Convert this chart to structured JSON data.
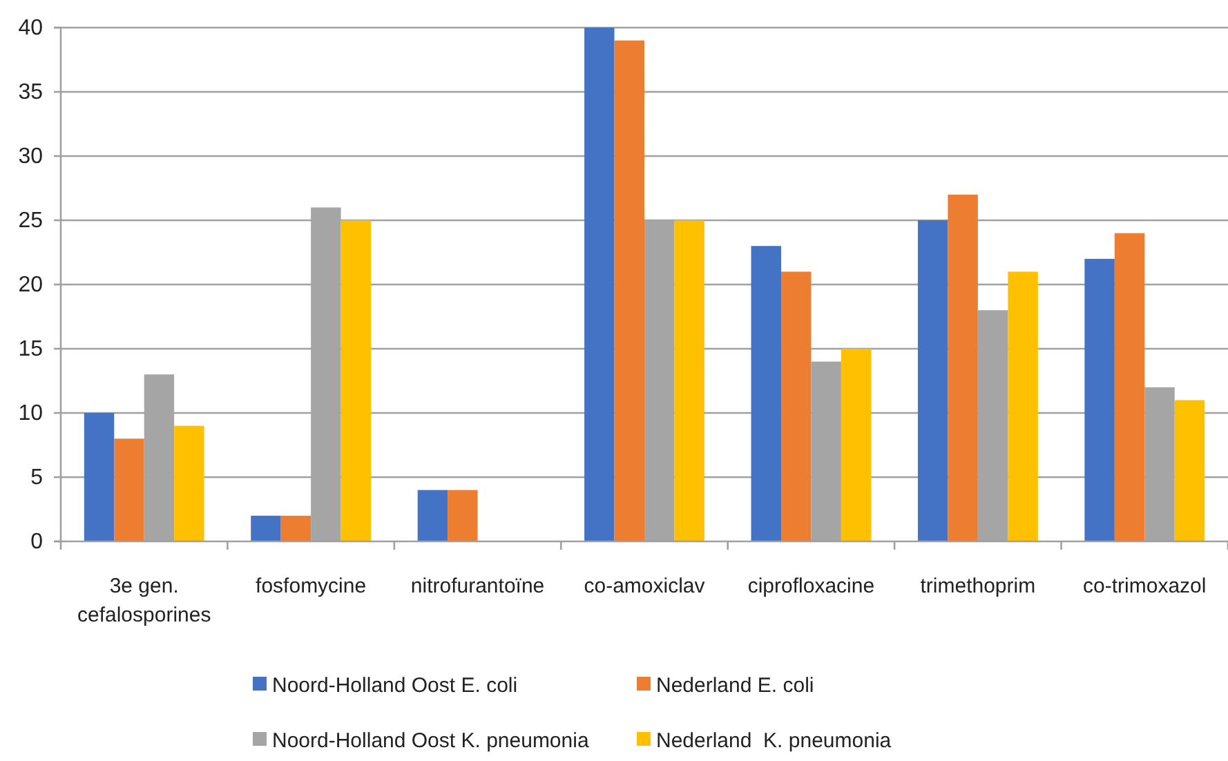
{
  "chart_data": {
    "type": "bar",
    "categories": [
      "3e gen. cefalosporines",
      "fosfomycine",
      "nitrofurantoïne",
      "co-amoxiclav",
      "ciprofloxacine",
      "trimethoprim",
      "co-trimoxazol"
    ],
    "series": [
      {
        "name": "Noord-Holland Oost E. coli",
        "color": "#4472c4",
        "values": [
          10,
          2,
          4,
          40,
          23,
          25,
          22
        ]
      },
      {
        "name": "Nederland E. coli",
        "color": "#ed7d31",
        "values": [
          8,
          2,
          4,
          39,
          21,
          27,
          24
        ]
      },
      {
        "name": "Noord-Holland Oost K. pneumonia",
        "color": "#a5a5a5",
        "values": [
          13,
          26,
          null,
          25,
          14,
          18,
          12
        ]
      },
      {
        "name": "Nederland  K. pneumonia",
        "color": "#ffc000",
        "values": [
          9,
          25,
          null,
          25,
          15,
          21,
          11
        ]
      }
    ],
    "ylim": [
      0,
      40
    ],
    "yticks": [
      0,
      5,
      10,
      15,
      20,
      25,
      30,
      35,
      40
    ],
    "grid": "y",
    "legend": "bottom"
  }
}
